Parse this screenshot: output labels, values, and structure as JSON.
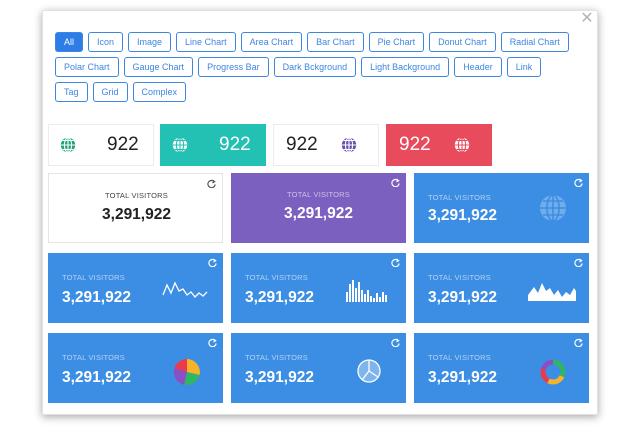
{
  "filters": {
    "row1": [
      "All",
      "Icon",
      "Image",
      "Line Chart",
      "Area Chart",
      "Bar Chart",
      "Pie Chart",
      "Donut Chart",
      "Radial Chart"
    ],
    "row2": [
      "Polar Chart",
      "Gauge Chart",
      "Progress Bar",
      "Dark Bckground",
      "Light Background",
      "Header",
      "Link"
    ],
    "row3": [
      "Tag",
      "Grid",
      "Complex"
    ],
    "active": "All"
  },
  "stats": [
    {
      "value": "922",
      "icon": "globe-icon",
      "color": "#1fa876"
    },
    {
      "value": "922",
      "icon": "globe-icon",
      "color": "#ffffff"
    },
    {
      "value": "922",
      "icon": "globe-icon",
      "color": "#6a4fb3"
    },
    {
      "value": "922",
      "icon": "globe-icon",
      "color": "#ffffff"
    }
  ],
  "cards": [
    {
      "label": "TOTAL VISITORS",
      "value": "3,291,922"
    },
    {
      "label": "TOTAL VISITORS",
      "value": "3,291,922"
    },
    {
      "label": "TOTAL VISITORS",
      "value": "3,291,922"
    },
    {
      "label": "TOTAL VISITORS",
      "value": "3,291,922"
    },
    {
      "label": "TOTAL VISITORS",
      "value": "3,291,922"
    },
    {
      "label": "TOTAL VISITORS",
      "value": "3,291,922"
    },
    {
      "label": "TOTAL VISITORS",
      "value": "3,291,922"
    },
    {
      "label": "TOTAL VISITORS",
      "value": "3,291,922"
    },
    {
      "label": "TOTAL VISITORS",
      "value": "3,291,922"
    }
  ],
  "colors": {
    "accent": "#2d7de6",
    "card_blue": "#3b8ee3",
    "card_purple": "#7b60c0",
    "teal": "#22c1b3",
    "red": "#e84b5c",
    "green_globe": "#1fa876"
  }
}
